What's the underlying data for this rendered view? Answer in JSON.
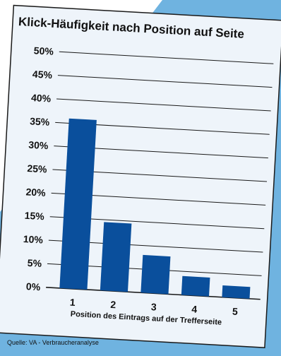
{
  "chart_data": {
    "type": "bar",
    "title": "Klick-Häufigkeit nach Position auf Seite",
    "categories": [
      "1",
      "2",
      "3",
      "4",
      "5"
    ],
    "values": [
      36,
      14.5,
      8,
      4,
      2.5
    ],
    "yticks": [
      "0%",
      "5%",
      "10%",
      "15%",
      "20%",
      "25%",
      "30%",
      "35%",
      "40%",
      "45%",
      "50%"
    ],
    "ylim": [
      0,
      50
    ],
    "xlabel": "Position des Eintrags auf der Trefferseite",
    "ylabel": "",
    "grid": true,
    "bar_color": "#0a4f9c"
  },
  "source": "Quelle: VA - Verbraucheranalyse",
  "colors": {
    "background_accent": "#6fb3e0",
    "panel": "#eef4fa",
    "frame": "#1a1a1a",
    "gridline": "#1a1a1a"
  }
}
